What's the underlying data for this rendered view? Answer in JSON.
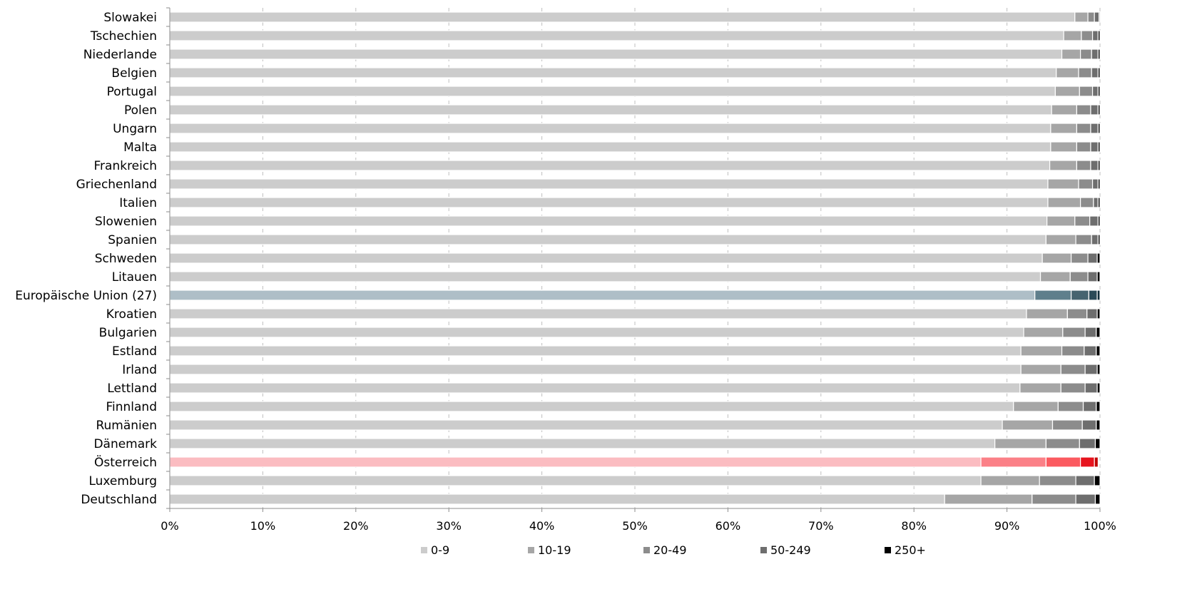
{
  "chart_data": {
    "type": "bar",
    "orientation": "horizontal",
    "stacked": "percent",
    "title": "",
    "xlabel": "",
    "ylabel": "",
    "xlim": [
      0,
      100
    ],
    "x_ticks": [
      "0%",
      "10%",
      "20%",
      "30%",
      "40%",
      "50%",
      "60%",
      "70%",
      "80%",
      "90%",
      "100%"
    ],
    "grid": "vertical dashed",
    "legend_position": "bottom",
    "categories": [
      "Slowakei",
      "Tschechien",
      "Niederlande",
      "Belgien",
      "Portugal",
      "Polen",
      "Ungarn",
      "Malta",
      "Frankreich",
      "Griechenland",
      "Italien",
      "Slowenien",
      "Spanien",
      "Schweden",
      "Litauen",
      "Europäische Union (27)",
      "Kroatien",
      "Bulgarien",
      "Estland",
      "Irland",
      "Lettland",
      "Finnland",
      "Rumänien",
      "Dänemark",
      "Österreich",
      "Luxemburg",
      "Deutschland"
    ],
    "series": [
      {
        "name": "0-9",
        "values": [
          97.3,
          96.1,
          95.9,
          95.3,
          95.2,
          94.8,
          94.7,
          94.7,
          94.6,
          94.4,
          94.4,
          94.3,
          94.2,
          93.8,
          93.6,
          93.0,
          92.1,
          91.8,
          91.5,
          91.5,
          91.4,
          90.7,
          89.5,
          88.7,
          87.2,
          87.2,
          83.3
        ]
      },
      {
        "name": "10-19",
        "values": [
          1.4,
          1.9,
          2.0,
          2.4,
          2.6,
          2.7,
          2.8,
          2.8,
          2.9,
          3.3,
          3.5,
          3.0,
          3.2,
          3.1,
          3.2,
          3.9,
          4.4,
          4.2,
          4.4,
          4.3,
          4.4,
          4.8,
          5.4,
          5.5,
          7.0,
          6.3,
          9.4
        ]
      },
      {
        "name": "20-49",
        "values": [
          0.7,
          1.2,
          1.2,
          1.4,
          1.4,
          1.5,
          1.5,
          1.5,
          1.5,
          1.5,
          1.4,
          1.6,
          1.7,
          1.8,
          1.9,
          1.9,
          2.1,
          2.4,
          2.4,
          2.6,
          2.6,
          2.7,
          3.2,
          3.6,
          3.7,
          3.9,
          4.7
        ]
      },
      {
        "name": "50-249",
        "values": [
          0.5,
          0.6,
          0.7,
          0.7,
          0.6,
          0.8,
          0.8,
          0.8,
          0.8,
          0.6,
          0.5,
          0.9,
          0.7,
          1.0,
          1.0,
          0.9,
          1.1,
          1.2,
          1.3,
          1.3,
          1.3,
          1.4,
          1.5,
          1.7,
          1.5,
          2.0,
          2.1
        ]
      },
      {
        "name": "250+",
        "values": [
          0.1,
          0.2,
          0.2,
          0.2,
          0.2,
          0.2,
          0.2,
          0.2,
          0.2,
          0.2,
          0.2,
          0.2,
          0.2,
          0.3,
          0.3,
          0.3,
          0.3,
          0.4,
          0.4,
          0.3,
          0.3,
          0.4,
          0.4,
          0.5,
          0.4,
          0.6,
          0.5
        ]
      }
    ],
    "colors": {
      "default": [
        "#cccccc",
        "#a6a6a6",
        "#8c8c8c",
        "#6e6e6e",
        "#000000"
      ],
      "highlight_eu": [
        "#aebec7",
        "#5f7f8c",
        "#466470",
        "#2a4a57",
        "#0f2c38"
      ],
      "highlight_at": [
        "#fbbcc1",
        "#fb8087",
        "#fb5a60",
        "#e7141e",
        "#c00000"
      ]
    },
    "highlights": {
      "Europäische Union (27)": "highlight_eu",
      "Österreich": "highlight_at"
    },
    "legend_colors": [
      "#cccccc",
      "#a6a6a6",
      "#8c8c8c",
      "#6e6e6e",
      "#000000"
    ]
  }
}
